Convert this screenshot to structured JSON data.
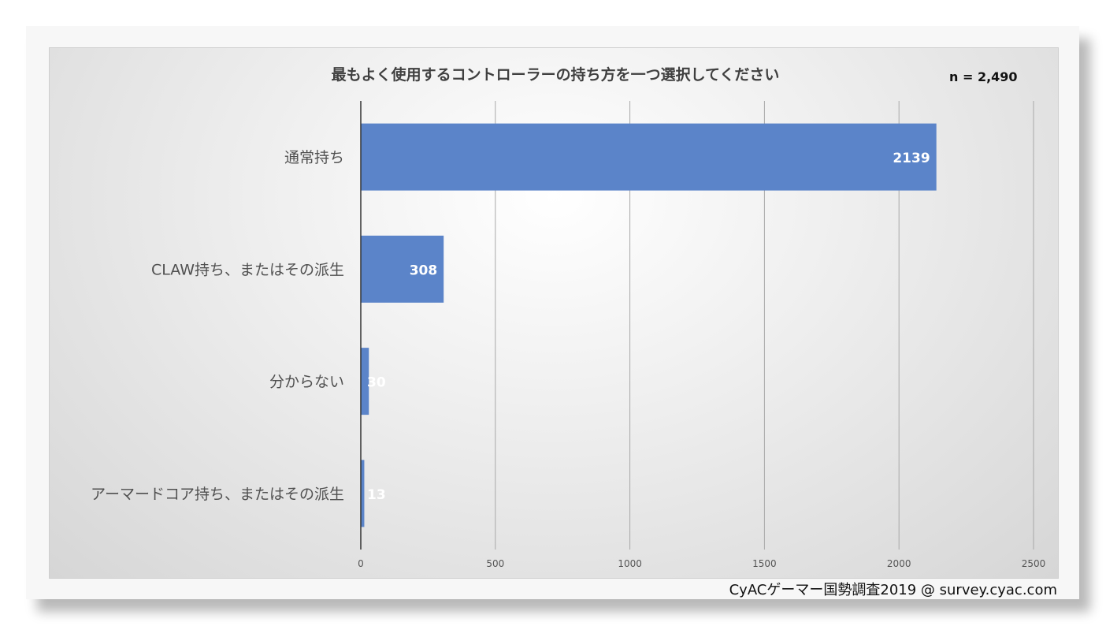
{
  "chart_data": {
    "type": "bar",
    "orientation": "horizontal",
    "title": "最もよく使用するコントローラーの持ち方を一つ選択してください",
    "annotation": "n = 2,490",
    "categories": [
      "通常持ち",
      "CLAW持ち、またはその派生",
      "分からない",
      "アーマードコア持ち、またはその派生"
    ],
    "values": [
      2139,
      308,
      30,
      13
    ],
    "xlim": [
      0,
      2500
    ],
    "xticks": [
      0,
      500,
      1000,
      1500,
      2000,
      2500
    ],
    "grid": true,
    "bar_color": "#5b84c9",
    "data_labels": true
  },
  "footer": "CyACゲーマー国勢調査2019 @ survey.cyac.com"
}
